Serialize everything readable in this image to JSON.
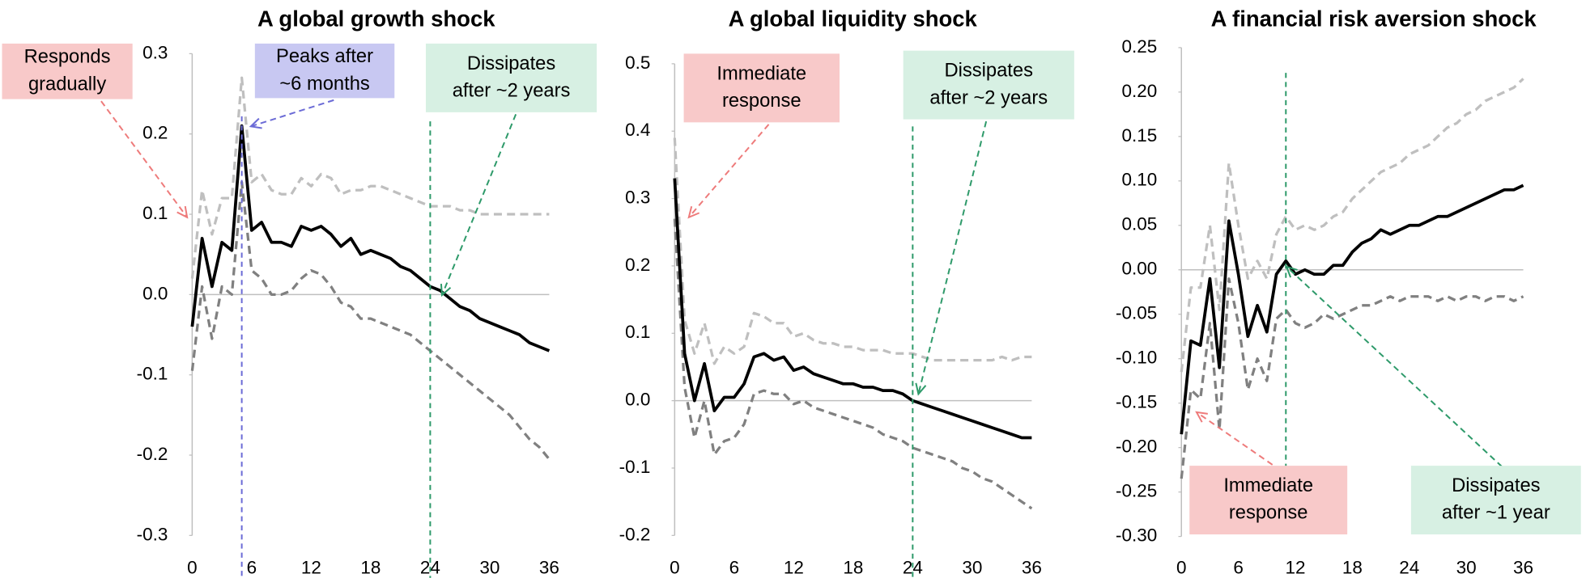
{
  "chart_data": [
    {
      "type": "line",
      "title": "A global growth shock",
      "x": [
        0,
        1,
        2,
        3,
        4,
        5,
        6,
        7,
        8,
        9,
        10,
        11,
        12,
        13,
        14,
        15,
        16,
        17,
        18,
        19,
        20,
        21,
        22,
        23,
        24,
        25,
        26,
        27,
        28,
        29,
        30,
        31,
        32,
        33,
        34,
        35,
        36
      ],
      "xlim": [
        0,
        36
      ],
      "xticks": [
        0,
        6,
        12,
        18,
        24,
        30,
        36
      ],
      "ylim": [
        -0.3,
        0.3
      ],
      "yticks": [
        -0.3,
        -0.2,
        -0.1,
        {
          "value": 0,
          "label": "0.0"
        },
        0.1,
        0.2,
        0.3
      ],
      "series": [
        {
          "color": "#000000",
          "style": "solid",
          "values": [
            -0.04,
            0.07,
            0.01,
            0.065,
            0.055,
            0.21,
            0.08,
            0.09,
            0.065,
            0.065,
            0.06,
            0.085,
            0.08,
            0.085,
            0.075,
            0.06,
            0.07,
            0.05,
            0.055,
            0.05,
            0.045,
            0.035,
            0.03,
            0.02,
            0.01,
            0.005,
            -0.005,
            -0.015,
            -0.02,
            -0.03,
            -0.035,
            -0.04,
            -0.045,
            -0.05,
            -0.06,
            -0.065,
            -0.07
          ]
        },
        {
          "color": "#bfbfbf",
          "style": "dashed",
          "values": [
            0.02,
            0.13,
            0.075,
            0.12,
            0.12,
            0.27,
            0.14,
            0.15,
            0.13,
            0.125,
            0.125,
            0.145,
            0.135,
            0.15,
            0.145,
            0.125,
            0.13,
            0.13,
            0.135,
            0.135,
            0.13,
            0.125,
            0.12,
            0.115,
            0.11,
            0.11,
            0.11,
            0.105,
            0.105,
            0.1,
            0.1,
            0.1,
            0.1,
            0.1,
            0.1,
            0.1,
            0.1
          ]
        },
        {
          "color": "#808080",
          "style": "dashed",
          "values": [
            -0.095,
            0.01,
            -0.055,
            0.01,
            0.0,
            0.14,
            0.03,
            0.02,
            0.0,
            0.0,
            0.005,
            0.02,
            0.03,
            0.025,
            0.01,
            -0.01,
            -0.015,
            -0.03,
            -0.03,
            -0.035,
            -0.04,
            -0.045,
            -0.05,
            -0.06,
            -0.07,
            -0.08,
            -0.09,
            -0.1,
            -0.11,
            -0.12,
            -0.13,
            -0.14,
            -0.15,
            -0.165,
            -0.18,
            -0.19,
            -0.205
          ]
        }
      ],
      "vlines": [
        {
          "x": 5,
          "color": "#6b6bd6"
        },
        {
          "x": 24,
          "color": "#2e9a6a"
        }
      ],
      "annotations": [
        {
          "lines": [
            "Responds",
            "gradually"
          ],
          "color": "#f8c9c9",
          "arrow_color": "#ee7b7b"
        },
        {
          "lines": [
            "Peaks after",
            "~6 months"
          ],
          "color": "#c8c8f2",
          "arrow_color": "#6b6bd6"
        },
        {
          "lines": [
            "Dissipates",
            "after ~2 years"
          ],
          "color": "#d7f0e3",
          "arrow_color": "#2e9a6a"
        }
      ]
    },
    {
      "type": "line",
      "title": "A global liquidity shock",
      "x": [
        0,
        1,
        2,
        3,
        4,
        5,
        6,
        7,
        8,
        9,
        10,
        11,
        12,
        13,
        14,
        15,
        16,
        17,
        18,
        19,
        20,
        21,
        22,
        23,
        24,
        25,
        26,
        27,
        28,
        29,
        30,
        31,
        32,
        33,
        34,
        35,
        36
      ],
      "xlim": [
        0,
        36
      ],
      "xticks": [
        0,
        6,
        12,
        18,
        24,
        30,
        36
      ],
      "ylim": [
        -0.2,
        0.5
      ],
      "yticks": [
        -0.2,
        -0.1,
        {
          "value": 0,
          "label": "0.0"
        },
        0.1,
        0.2,
        0.3,
        0.4,
        0.5
      ],
      "series": [
        {
          "color": "#000000",
          "style": "solid",
          "values": [
            0.33,
            0.07,
            0.0,
            0.055,
            -0.015,
            0.005,
            0.005,
            0.025,
            0.065,
            0.07,
            0.06,
            0.065,
            0.045,
            0.05,
            0.04,
            0.035,
            0.03,
            0.025,
            0.025,
            0.02,
            0.02,
            0.015,
            0.015,
            0.01,
            0.0,
            -0.005,
            -0.01,
            -0.015,
            -0.02,
            -0.025,
            -0.03,
            -0.035,
            -0.04,
            -0.045,
            -0.05,
            -0.055,
            -0.055
          ]
        },
        {
          "color": "#bfbfbf",
          "style": "dashed",
          "values": [
            0.39,
            0.12,
            0.07,
            0.115,
            0.055,
            0.08,
            0.07,
            0.08,
            0.13,
            0.125,
            0.115,
            0.115,
            0.095,
            0.1,
            0.09,
            0.085,
            0.085,
            0.08,
            0.08,
            0.075,
            0.075,
            0.075,
            0.07,
            0.07,
            0.07,
            0.065,
            0.06,
            0.06,
            0.06,
            0.06,
            0.06,
            0.06,
            0.06,
            0.065,
            0.06,
            0.065,
            0.065
          ]
        },
        {
          "color": "#808080",
          "style": "dashed",
          "values": [
            0.27,
            0.02,
            -0.055,
            0.0,
            -0.08,
            -0.06,
            -0.055,
            -0.035,
            0.01,
            0.015,
            0.01,
            0.01,
            -0.005,
            0.0,
            -0.01,
            -0.015,
            -0.02,
            -0.025,
            -0.03,
            -0.035,
            -0.04,
            -0.05,
            -0.055,
            -0.06,
            -0.07,
            -0.075,
            -0.08,
            -0.085,
            -0.09,
            -0.1,
            -0.105,
            -0.115,
            -0.12,
            -0.13,
            -0.14,
            -0.15,
            -0.16
          ]
        }
      ],
      "vlines": [
        {
          "x": 24,
          "color": "#2e9a6a"
        }
      ],
      "annotations": [
        {
          "lines": [
            "Immediate",
            "response"
          ],
          "color": "#f8c9c9",
          "arrow_color": "#ee7b7b"
        },
        {
          "lines": [
            "Dissipates",
            "after ~2 years"
          ],
          "color": "#d7f0e3",
          "arrow_color": "#2e9a6a"
        }
      ]
    },
    {
      "type": "line",
      "title": "A financial risk aversion shock",
      "x": [
        0,
        1,
        2,
        3,
        4,
        5,
        6,
        7,
        8,
        9,
        10,
        11,
        12,
        13,
        14,
        15,
        16,
        17,
        18,
        19,
        20,
        21,
        22,
        23,
        24,
        25,
        26,
        27,
        28,
        29,
        30,
        31,
        32,
        33,
        34,
        35,
        36
      ],
      "xlim": [
        0,
        36
      ],
      "xticks": [
        0,
        6,
        12,
        18,
        24,
        30,
        36
      ],
      "ylim": [
        -0.3,
        0.25
      ],
      "yticks": [
        {
          "value": -0.3,
          "label": "-0.30"
        },
        -0.25,
        {
          "value": -0.2,
          "label": "-0.20"
        },
        -0.15,
        {
          "value": -0.1,
          "label": "-0.10"
        },
        -0.05,
        {
          "value": 0,
          "label": "0.00"
        },
        0.05,
        {
          "value": 0.1,
          "label": "0.10"
        },
        0.15,
        {
          "value": 0.2,
          "label": "0.20"
        },
        0.25
      ],
      "series": [
        {
          "color": "#000000",
          "style": "solid",
          "values": [
            -0.185,
            -0.08,
            -0.085,
            -0.01,
            -0.11,
            0.055,
            -0.005,
            -0.075,
            -0.04,
            -0.07,
            -0.005,
            0.01,
            -0.005,
            0.0,
            -0.005,
            -0.005,
            0.005,
            0.005,
            0.02,
            0.03,
            0.035,
            0.045,
            0.04,
            0.045,
            0.05,
            0.05,
            0.055,
            0.06,
            0.06,
            0.065,
            0.07,
            0.075,
            0.08,
            0.085,
            0.09,
            0.09,
            0.095
          ]
        },
        {
          "color": "#bfbfbf",
          "style": "dashed",
          "values": [
            -0.115,
            -0.02,
            -0.02,
            0.05,
            -0.045,
            0.12,
            0.05,
            -0.01,
            0.01,
            -0.01,
            0.04,
            0.06,
            0.045,
            0.05,
            0.045,
            0.05,
            0.06,
            0.065,
            0.08,
            0.09,
            0.1,
            0.11,
            0.115,
            0.12,
            0.13,
            0.135,
            0.14,
            0.15,
            0.16,
            0.165,
            0.175,
            0.18,
            0.19,
            0.195,
            0.2,
            0.205,
            0.215
          ]
        },
        {
          "color": "#808080",
          "style": "dashed",
          "values": [
            -0.235,
            -0.135,
            -0.145,
            -0.06,
            -0.18,
            -0.01,
            -0.06,
            -0.135,
            -0.1,
            -0.125,
            -0.055,
            -0.045,
            -0.06,
            -0.065,
            -0.06,
            -0.05,
            -0.055,
            -0.05,
            -0.045,
            -0.04,
            -0.04,
            -0.035,
            -0.03,
            -0.035,
            -0.03,
            -0.03,
            -0.03,
            -0.035,
            -0.03,
            -0.035,
            -0.03,
            -0.03,
            -0.035,
            -0.03,
            -0.03,
            -0.035,
            -0.03
          ]
        }
      ],
      "vlines": [
        {
          "x": 11,
          "color": "#2e9a6a"
        }
      ],
      "annotations": [
        {
          "lines": [
            "Immediate",
            "response"
          ],
          "color": "#f8c9c9",
          "arrow_color": "#ee7b7b"
        },
        {
          "lines": [
            "Dissipates",
            "after ~1 year"
          ],
          "color": "#d7f0e3",
          "arrow_color": "#2e9a6a"
        }
      ]
    }
  ]
}
